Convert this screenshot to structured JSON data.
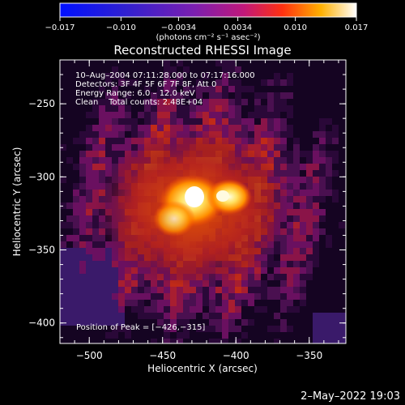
{
  "colorbar": {
    "tick_labels": [
      "−0.017",
      "−0.010",
      "−0.0034",
      "0.0034",
      "0.010",
      "0.017"
    ],
    "tick_values": [
      -0.017,
      -0.01,
      -0.0034,
      0.0034,
      0.01,
      0.017
    ],
    "range": [
      -0.017,
      0.017
    ],
    "units_label": "(photons cm⁻² s⁻¹ asec⁻²)"
  },
  "image": {
    "title": "Reconstructed RHESSI Image",
    "info_lines": [
      "10–Aug–2004 07:11:28.000 to 07:17:16.000",
      "Detectors: 3F 4F 5F 6F 7F 8F, Att 0",
      "Energy Range: 6.0 – 12.0 keV",
      "Clean    Total counts: 2.48E+04"
    ],
    "peak_label": "Position of Peak = [−426,−315]",
    "peak": [
      -426,
      -315
    ]
  },
  "axes": {
    "xlabel": "Heliocentric X (arcsec)",
    "ylabel": "Heliocentric Y (arcsec)",
    "x_ticks": [
      -500,
      -450,
      -400,
      -350
    ],
    "x_tick_labels": [
      "−500",
      "−450",
      "−400",
      "−350"
    ],
    "y_ticks": [
      -250,
      -300,
      -350,
      -400
    ],
    "y_tick_labels": [
      "−250",
      "−300",
      "−350",
      "−400"
    ],
    "xlim": [
      -520,
      -325
    ],
    "ylim": [
      -414,
      -220
    ]
  },
  "footer": {
    "date": "2–May–2022 19:03"
  }
}
